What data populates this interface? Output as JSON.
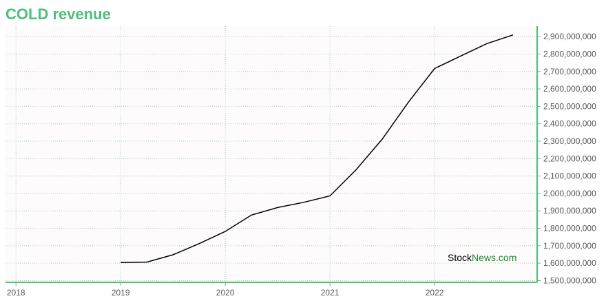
{
  "chart_data": {
    "type": "line",
    "title": "COLD revenue",
    "xlabel": "",
    "ylabel": "",
    "x_ticks": [
      "2018",
      "2019",
      "2020",
      "2021",
      "2022"
    ],
    "y_ticks": [
      1500000000,
      1600000000,
      1700000000,
      1800000000,
      1900000000,
      2000000000,
      2100000000,
      2200000000,
      2300000000,
      2400000000,
      2500000000,
      2600000000,
      2700000000,
      2800000000,
      2900000000
    ],
    "y_tick_labels": [
      "1,500,000,000",
      "1,600,000,000",
      "1,700,000,000",
      "1,800,000,000",
      "1,900,000,000",
      "2,000,000,000",
      "2,100,000,000",
      "2,200,000,000",
      "2,300,000,000",
      "2,400,000,000",
      "2,500,000,000",
      "2,600,000,000",
      "2,700,000,000",
      "2,800,000,000",
      "2,900,000,000"
    ],
    "xlim": [
      2017.9,
      2022.98
    ],
    "ylim": [
      1490000000,
      2960000000
    ],
    "grid": true,
    "series": [
      {
        "x": [
          2019.0,
          2019.25,
          2019.5,
          2019.75,
          2020.0,
          2020.25,
          2020.5,
          2020.75,
          2021.0,
          2021.25,
          2021.5,
          2021.75,
          2022.0,
          2022.25,
          2022.5,
          2022.75
        ],
        "y": [
          1604000000,
          1606000000,
          1648000000,
          1712000000,
          1782000000,
          1876000000,
          1919000000,
          1949000000,
          1986000000,
          2136000000,
          2312000000,
          2524000000,
          2717000000,
          2789000000,
          2860000000,
          2910000000
        ]
      }
    ]
  },
  "colors": {
    "title": "#4cbf7a",
    "axis": "#4cbf7a",
    "grid": "#a8d8b0",
    "line": "#000000",
    "watermark_dark": "#000000",
    "watermark_green": "#1a8a2e"
  },
  "watermark": {
    "part1": "Stock",
    "part2": "News",
    "part3": ".com"
  }
}
